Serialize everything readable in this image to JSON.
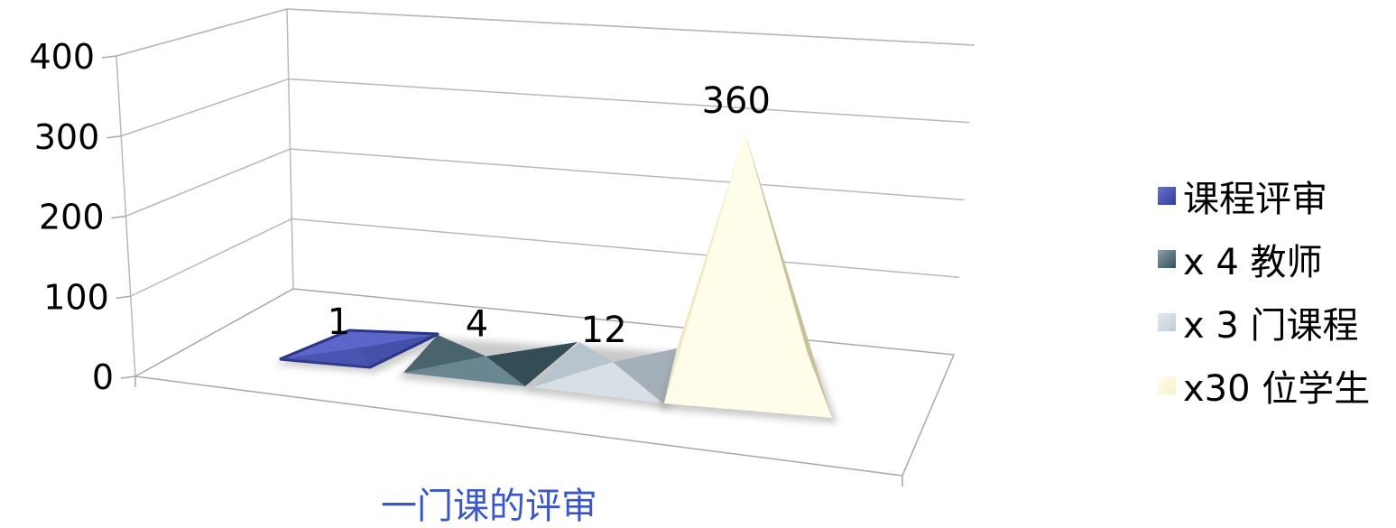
{
  "chart_data": {
    "type": "bar",
    "style": "3d-pyramid",
    "categories": [
      "一门课的评审"
    ],
    "series": [
      {
        "name": "课程评审",
        "values": [
          1
        ],
        "color": "#4a56b8"
      },
      {
        "name": "x 4 教师",
        "values": [
          4
        ],
        "color": "#4e6b75"
      },
      {
        "name": "x 3 门课程",
        "values": [
          12
        ],
        "color": "#c6d0d8"
      },
      {
        "name": "x30 位学生",
        "values": [
          360
        ],
        "color": "#fdfbe0"
      }
    ],
    "data_labels": [
      "1",
      "4",
      "12",
      "360"
    ],
    "y_ticks": [
      "0",
      "100",
      "200",
      "300",
      "400"
    ],
    "ylim": [
      0,
      400
    ],
    "grid": true,
    "legend_position": "right"
  }
}
